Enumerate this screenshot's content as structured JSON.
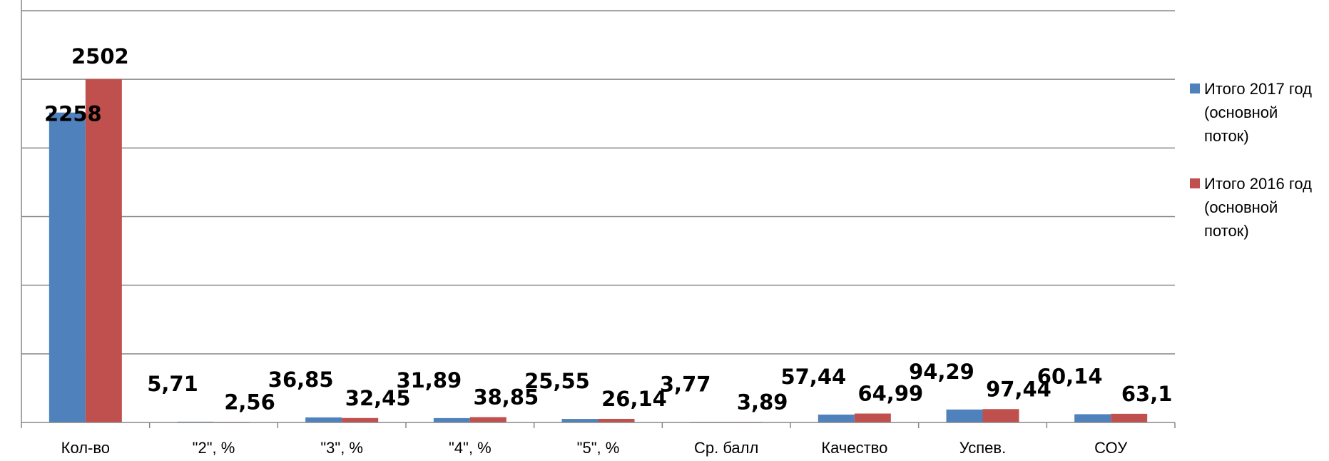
{
  "chart_data": {
    "type": "bar",
    "categories": [
      "Кол-во",
      "\"2\", %",
      "\"3\", %",
      "\"4\", %",
      "\"5\", %",
      "Ср. балл",
      "Качество",
      "Успев.",
      "СОУ"
    ],
    "series": [
      {
        "name": "Итого 2017 год (основной поток)",
        "color": "#4F81BD",
        "values": [
          2258,
          5.71,
          36.85,
          31.89,
          25.55,
          3.77,
          57.44,
          94.29,
          60.14
        ]
      },
      {
        "name": "Итого 2016 год (основной поток)",
        "color": "#C0504D",
        "values": [
          2502,
          2.56,
          32.45,
          38.85,
          26.14,
          3.89,
          64.99,
          97.44,
          63.1
        ]
      }
    ],
    "data_labels": [
      [
        "2258",
        "5,71",
        "36,85",
        "31,89",
        "25,55",
        "3,77",
        "57,44",
        "94,29",
        "60,14"
      ],
      [
        "2502",
        "2,56",
        "32,45",
        "38,85",
        "26,14",
        "3,89",
        "64,99",
        "97,44",
        "63,1"
      ]
    ],
    "title": "",
    "xlabel": "",
    "ylabel": "",
    "ylim": [
      0,
      3000
    ],
    "y_gridline_step": 500,
    "y_tick_labels_shown": false,
    "grid": true,
    "legend_position": "right"
  }
}
